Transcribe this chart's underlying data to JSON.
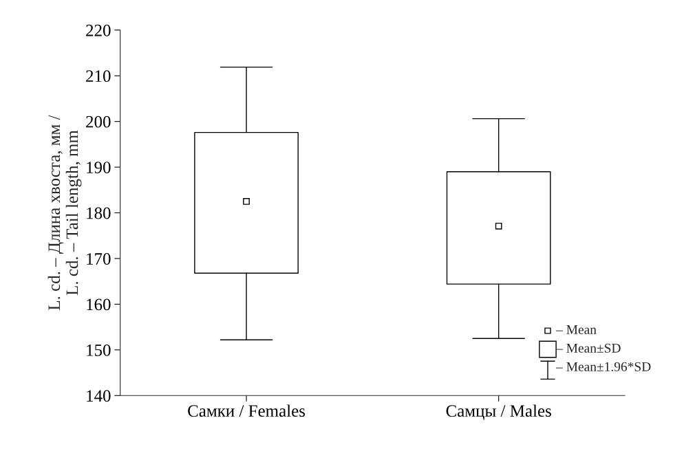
{
  "chart_data": {
    "type": "box",
    "ylabel": "L. cd. – Длина хвоста, мм /\nL. cd. – Tail length, mm",
    "categories": [
      "Самки / Females",
      "Самцы / Males"
    ],
    "boxes": [
      {
        "low": 152.2,
        "q1": 166.8,
        "median": 182.5,
        "q3": 197.6,
        "high": 211.9
      },
      {
        "low": 152.5,
        "q1": 164.4,
        "median": 177.1,
        "q3": 189.0,
        "high": 200.6
      }
    ],
    "ylim": [
      140,
      220
    ],
    "yticks": [
      140,
      150,
      160,
      170,
      180,
      190,
      200,
      210,
      220
    ],
    "grid": false,
    "annotations": [
      "– Mean",
      "– Mean±SD",
      "– Mean±1.96*SD"
    ]
  }
}
